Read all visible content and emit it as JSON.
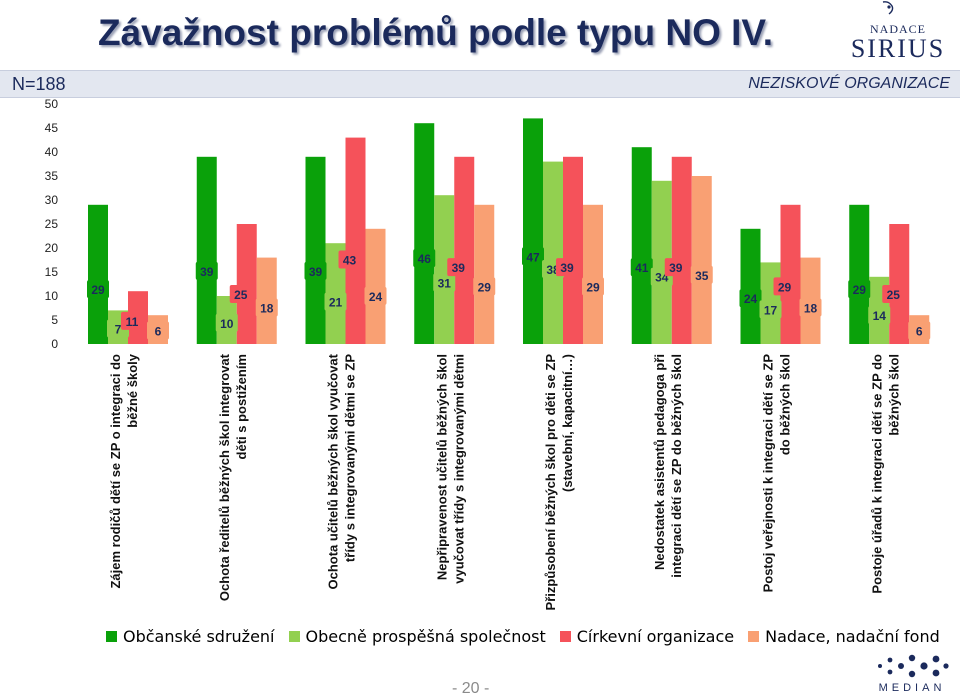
{
  "header": {
    "title": "Závažnost problémů podle typu NO IV.",
    "n_label": "N=188",
    "org_type": "NEZISKOVÉ ORGANIZACE"
  },
  "logos": {
    "top_line1": "NADACE",
    "top_line2": "SIRIUS",
    "bottom": "MEDIAN"
  },
  "page_number": "- 20 -",
  "colors": {
    "series": [
      "#0aa10a",
      "#92d050",
      "#f5525a",
      "#f9a073"
    ],
    "title": "#1b2a5c"
  },
  "chart_data": {
    "type": "bar",
    "ylim": [
      0,
      50
    ],
    "yticks": [
      0,
      5,
      10,
      15,
      20,
      25,
      30,
      35,
      40,
      45,
      50
    ],
    "grid": false,
    "legend_position": "bottom",
    "categories": [
      [
        "Zájem rodičů dětí se ZP o integraci do",
        "běžné školy"
      ],
      [
        "Ochota ředitelů běžných škol integrovat",
        "děti s postižením"
      ],
      [
        "Ochota učitelů běžných škol vyučovat",
        "třídy s integrovanými dětmi se ZP"
      ],
      [
        "Nepřipravenost učitelů běžných škol",
        "vyučovat třídy s integrovanými dětmi"
      ],
      [
        "Přizpůsobení běžných škol pro děti se ZP",
        "(stavební, kapacitní…)"
      ],
      [
        "Nedostatek asistentů pedagoga při",
        "integraci dětí se ZP do běžných škol"
      ],
      [
        "Postoj veřejnosti k integraci dětí se ZP",
        "do běžných škol"
      ],
      [
        "Postoje úřadů k integraci dětí se ZP do",
        "běžných škol"
      ]
    ],
    "series": [
      {
        "name": "Občanské sdružení",
        "values": [
          29,
          39,
          39,
          46,
          47,
          41,
          24,
          29
        ]
      },
      {
        "name": "Obecně prospěšná společnost",
        "values": [
          7,
          10,
          21,
          31,
          38,
          34,
          17,
          14
        ]
      },
      {
        "name": "Církevní organizace",
        "values": [
          11,
          25,
          43,
          39,
          39,
          39,
          29,
          25
        ]
      },
      {
        "name": "Nadace, nadační fond",
        "values": [
          6,
          18,
          24,
          29,
          29,
          35,
          18,
          6
        ]
      }
    ]
  }
}
